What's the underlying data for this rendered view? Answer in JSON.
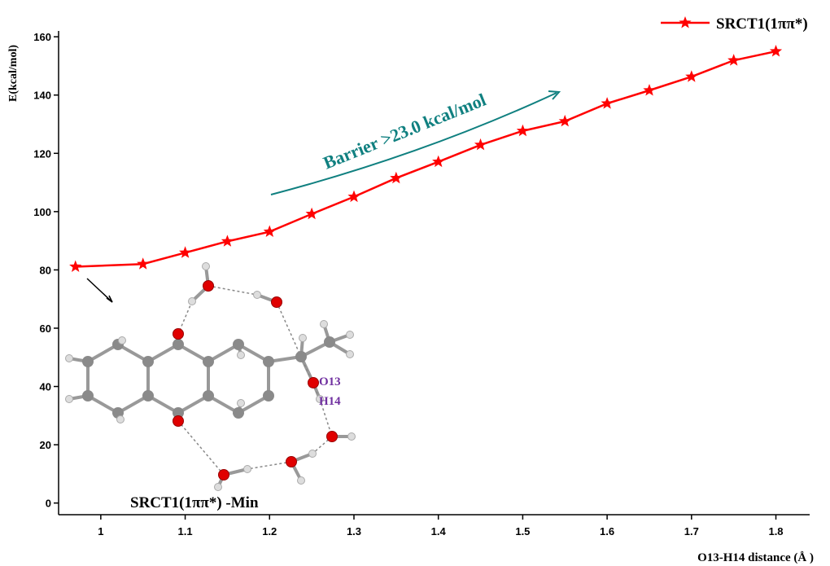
{
  "chart_data": {
    "type": "line",
    "x": [
      0.97,
      1.05,
      1.1,
      1.15,
      1.2,
      1.25,
      1.3,
      1.35,
      1.4,
      1.45,
      1.5,
      1.55,
      1.6,
      1.65,
      1.7,
      1.75,
      1.8
    ],
    "series": [
      {
        "name": "SRCT1(1ππ*)",
        "color": "#ff0000",
        "values": [
          81.1,
          82,
          85.9,
          89.8,
          93.1,
          99.2,
          105.1,
          111.5,
          117.1,
          122.9,
          127.7,
          131,
          137.1,
          141.6,
          146.3,
          151.9,
          155
        ]
      }
    ],
    "xlabel": "O13-H14 distance (Å )",
    "ylabel": "E(kcal/mol)",
    "xlim": [
      0.95,
      1.84
    ],
    "ylim": [
      -4,
      162
    ],
    "xticks": [
      1.0,
      1.1,
      1.2,
      1.3,
      1.4,
      1.5,
      1.6,
      1.7,
      1.8
    ],
    "yticks": [
      0,
      20,
      40,
      60,
      80,
      100,
      120,
      140,
      160
    ],
    "annotations": {
      "barrier": "Barrier >23.0 kcal/mol",
      "minimum": "SRCT1(1ππ*) -Min",
      "oxygen": "O13",
      "hydrogen": "H14"
    },
    "legend_position": "upper right",
    "grid": false
  }
}
